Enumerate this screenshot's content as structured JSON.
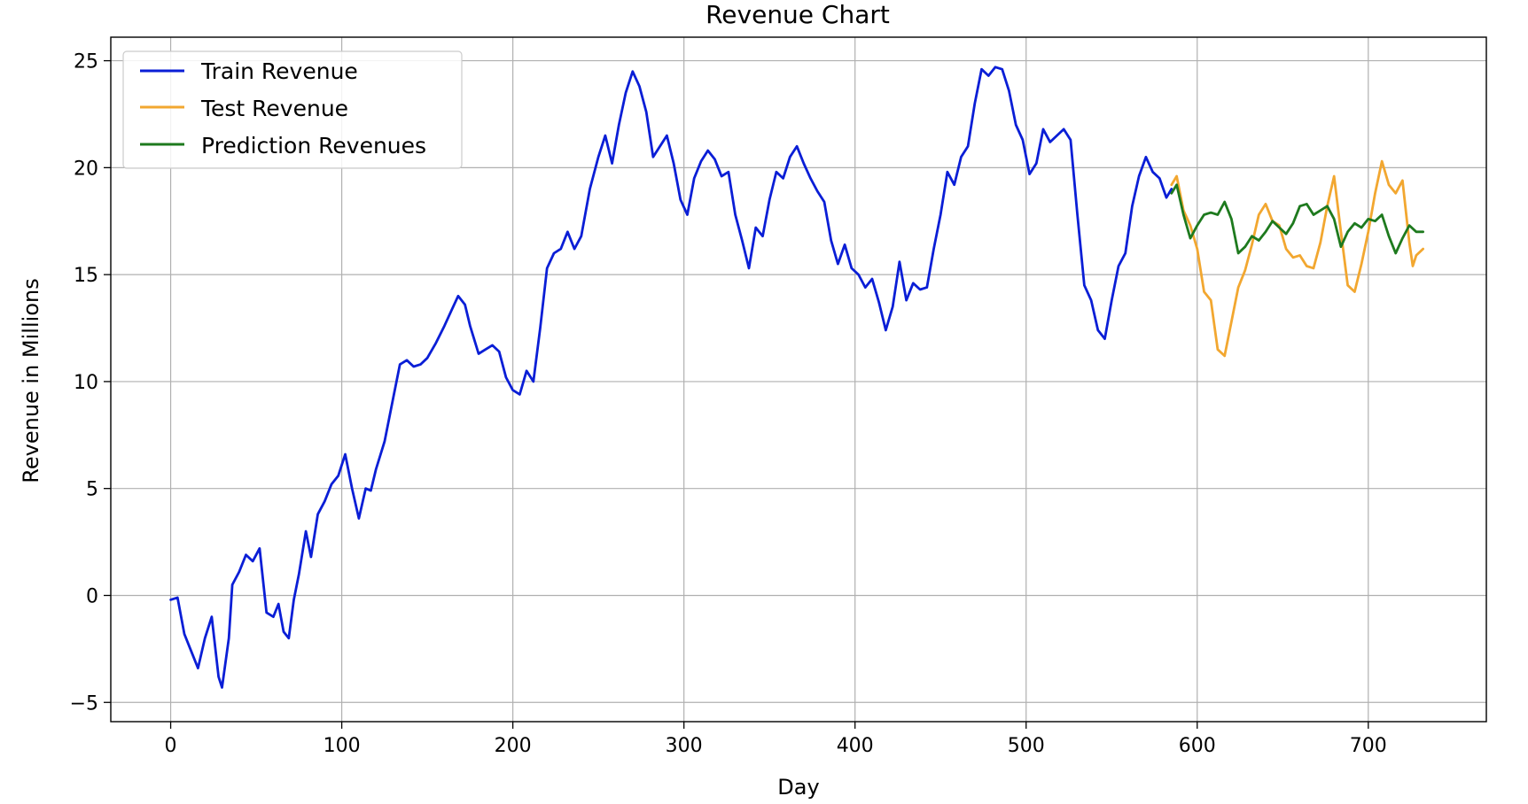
{
  "chart_data": {
    "type": "line",
    "title": "Revenue Chart",
    "xlabel": "Day",
    "ylabel": "Revenue in Millions",
    "xlim": [
      -35,
      769
    ],
    "ylim": [
      -5.9,
      26.1
    ],
    "xticks": [
      0,
      100,
      200,
      300,
      400,
      500,
      600,
      700
    ],
    "yticks": [
      -5,
      0,
      5,
      10,
      15,
      20,
      25
    ],
    "ytick_labels": [
      "−5",
      "0",
      "5",
      "10",
      "15",
      "20",
      "25"
    ],
    "grid": true,
    "legend_position": "top-left",
    "series": [
      {
        "name": "Train Revenue",
        "color": "#0a1ed6",
        "points": [
          [
            0,
            -0.2
          ],
          [
            4,
            -0.1
          ],
          [
            8,
            -1.8
          ],
          [
            12,
            -2.6
          ],
          [
            16,
            -3.4
          ],
          [
            20,
            -2.0
          ],
          [
            24,
            -1.0
          ],
          [
            28,
            -3.8
          ],
          [
            30,
            -4.3
          ],
          [
            34,
            -2.0
          ],
          [
            36,
            0.5
          ],
          [
            40,
            1.1
          ],
          [
            44,
            1.9
          ],
          [
            48,
            1.6
          ],
          [
            52,
            2.2
          ],
          [
            56,
            -0.8
          ],
          [
            60,
            -1.0
          ],
          [
            63,
            -0.4
          ],
          [
            66,
            -1.7
          ],
          [
            69,
            -2.0
          ],
          [
            72,
            -0.2
          ],
          [
            75,
            1.0
          ],
          [
            79,
            3.0
          ],
          [
            82,
            1.8
          ],
          [
            86,
            3.8
          ],
          [
            90,
            4.4
          ],
          [
            94,
            5.2
          ],
          [
            98,
            5.6
          ],
          [
            102,
            6.6
          ],
          [
            106,
            5.0
          ],
          [
            110,
            3.6
          ],
          [
            114,
            5.0
          ],
          [
            117,
            4.9
          ],
          [
            120,
            5.9
          ],
          [
            125,
            7.2
          ],
          [
            130,
            9.2
          ],
          [
            134,
            10.8
          ],
          [
            138,
            11.0
          ],
          [
            142,
            10.7
          ],
          [
            146,
            10.8
          ],
          [
            150,
            11.1
          ],
          [
            155,
            11.8
          ],
          [
            160,
            12.6
          ],
          [
            164,
            13.3
          ],
          [
            168,
            14.0
          ],
          [
            172,
            13.6
          ],
          [
            175,
            12.6
          ],
          [
            180,
            11.3
          ],
          [
            184,
            11.5
          ],
          [
            188,
            11.7
          ],
          [
            192,
            11.4
          ],
          [
            196,
            10.2
          ],
          [
            200,
            9.6
          ],
          [
            204,
            9.4
          ],
          [
            208,
            10.5
          ],
          [
            212,
            10.0
          ],
          [
            216,
            12.5
          ],
          [
            220,
            15.3
          ],
          [
            224,
            16.0
          ],
          [
            228,
            16.2
          ],
          [
            232,
            17.0
          ],
          [
            236,
            16.2
          ],
          [
            240,
            16.8
          ],
          [
            245,
            19.0
          ],
          [
            250,
            20.5
          ],
          [
            254,
            21.5
          ],
          [
            258,
            20.2
          ],
          [
            262,
            22.0
          ],
          [
            266,
            23.5
          ],
          [
            270,
            24.5
          ],
          [
            274,
            23.8
          ],
          [
            278,
            22.6
          ],
          [
            282,
            20.5
          ],
          [
            286,
            21.0
          ],
          [
            290,
            21.5
          ],
          [
            294,
            20.2
          ],
          [
            298,
            18.5
          ],
          [
            302,
            17.8
          ],
          [
            306,
            19.5
          ],
          [
            310,
            20.3
          ],
          [
            314,
            20.8
          ],
          [
            318,
            20.4
          ],
          [
            322,
            19.6
          ],
          [
            326,
            19.8
          ],
          [
            330,
            17.8
          ],
          [
            334,
            16.6
          ],
          [
            338,
            15.3
          ],
          [
            342,
            17.2
          ],
          [
            346,
            16.8
          ],
          [
            350,
            18.5
          ],
          [
            354,
            19.8
          ],
          [
            358,
            19.5
          ],
          [
            362,
            20.5
          ],
          [
            366,
            21.0
          ],
          [
            370,
            20.2
          ],
          [
            374,
            19.5
          ],
          [
            378,
            18.9
          ],
          [
            382,
            18.4
          ],
          [
            386,
            16.6
          ],
          [
            390,
            15.5
          ],
          [
            394,
            16.4
          ],
          [
            398,
            15.3
          ],
          [
            402,
            15.0
          ],
          [
            406,
            14.4
          ],
          [
            410,
            14.8
          ],
          [
            414,
            13.7
          ],
          [
            418,
            12.4
          ],
          [
            422,
            13.5
          ],
          [
            426,
            15.6
          ],
          [
            430,
            13.8
          ],
          [
            434,
            14.6
          ],
          [
            438,
            14.3
          ],
          [
            442,
            14.4
          ],
          [
            446,
            16.2
          ],
          [
            450,
            17.8
          ],
          [
            454,
            19.8
          ],
          [
            458,
            19.2
          ],
          [
            462,
            20.5
          ],
          [
            466,
            21.0
          ],
          [
            470,
            23.0
          ],
          [
            474,
            24.6
          ],
          [
            478,
            24.3
          ],
          [
            482,
            24.7
          ],
          [
            486,
            24.6
          ],
          [
            490,
            23.6
          ],
          [
            494,
            22.0
          ],
          [
            498,
            21.3
          ],
          [
            502,
            19.7
          ],
          [
            506,
            20.2
          ],
          [
            510,
            21.8
          ],
          [
            514,
            21.2
          ],
          [
            518,
            21.5
          ],
          [
            522,
            21.8
          ],
          [
            526,
            21.3
          ],
          [
            530,
            17.8
          ],
          [
            534,
            14.5
          ],
          [
            538,
            13.8
          ],
          [
            542,
            12.4
          ],
          [
            546,
            12.0
          ],
          [
            550,
            13.8
          ],
          [
            554,
            15.4
          ],
          [
            558,
            16.0
          ],
          [
            562,
            18.2
          ],
          [
            566,
            19.6
          ],
          [
            570,
            20.5
          ],
          [
            574,
            19.8
          ],
          [
            578,
            19.5
          ],
          [
            582,
            18.6
          ],
          [
            585,
            19.0
          ]
        ]
      },
      {
        "name": "Test Revenue",
        "color": "#f2a730",
        "points": [
          [
            585,
            19.2
          ],
          [
            588,
            19.6
          ],
          [
            592,
            18.0
          ],
          [
            596,
            17.3
          ],
          [
            600,
            16.2
          ],
          [
            604,
            14.2
          ],
          [
            608,
            13.8
          ],
          [
            612,
            11.5
          ],
          [
            616,
            11.2
          ],
          [
            620,
            12.8
          ],
          [
            624,
            14.4
          ],
          [
            628,
            15.2
          ],
          [
            632,
            16.4
          ],
          [
            636,
            17.8
          ],
          [
            640,
            18.3
          ],
          [
            644,
            17.5
          ],
          [
            648,
            17.3
          ],
          [
            652,
            16.2
          ],
          [
            656,
            15.8
          ],
          [
            660,
            15.9
          ],
          [
            664,
            15.4
          ],
          [
            668,
            15.3
          ],
          [
            672,
            16.5
          ],
          [
            676,
            18.2
          ],
          [
            680,
            19.6
          ],
          [
            684,
            17.0
          ],
          [
            688,
            14.5
          ],
          [
            692,
            14.2
          ],
          [
            696,
            15.5
          ],
          [
            700,
            17.0
          ],
          [
            704,
            18.8
          ],
          [
            708,
            20.3
          ],
          [
            712,
            19.2
          ],
          [
            716,
            18.8
          ],
          [
            720,
            19.4
          ],
          [
            724,
            16.5
          ],
          [
            726,
            15.4
          ],
          [
            728,
            15.9
          ],
          [
            732,
            16.2
          ]
        ]
      },
      {
        "name": "Prediction Revenues",
        "color": "#1e7a1e",
        "points": [
          [
            585,
            18.8
          ],
          [
            588,
            19.2
          ],
          [
            592,
            17.8
          ],
          [
            596,
            16.7
          ],
          [
            600,
            17.3
          ],
          [
            604,
            17.8
          ],
          [
            608,
            17.9
          ],
          [
            612,
            17.8
          ],
          [
            616,
            18.4
          ],
          [
            620,
            17.6
          ],
          [
            624,
            16.0
          ],
          [
            628,
            16.3
          ],
          [
            632,
            16.8
          ],
          [
            636,
            16.6
          ],
          [
            640,
            17.0
          ],
          [
            644,
            17.5
          ],
          [
            648,
            17.2
          ],
          [
            652,
            16.9
          ],
          [
            656,
            17.4
          ],
          [
            660,
            18.2
          ],
          [
            664,
            18.3
          ],
          [
            668,
            17.8
          ],
          [
            672,
            18.0
          ],
          [
            676,
            18.2
          ],
          [
            680,
            17.6
          ],
          [
            684,
            16.3
          ],
          [
            688,
            17.0
          ],
          [
            692,
            17.4
          ],
          [
            696,
            17.2
          ],
          [
            700,
            17.6
          ],
          [
            704,
            17.5
          ],
          [
            708,
            17.8
          ],
          [
            712,
            16.8
          ],
          [
            716,
            16.0
          ],
          [
            720,
            16.7
          ],
          [
            724,
            17.3
          ],
          [
            728,
            17.0
          ],
          [
            732,
            17.0
          ]
        ]
      }
    ]
  }
}
